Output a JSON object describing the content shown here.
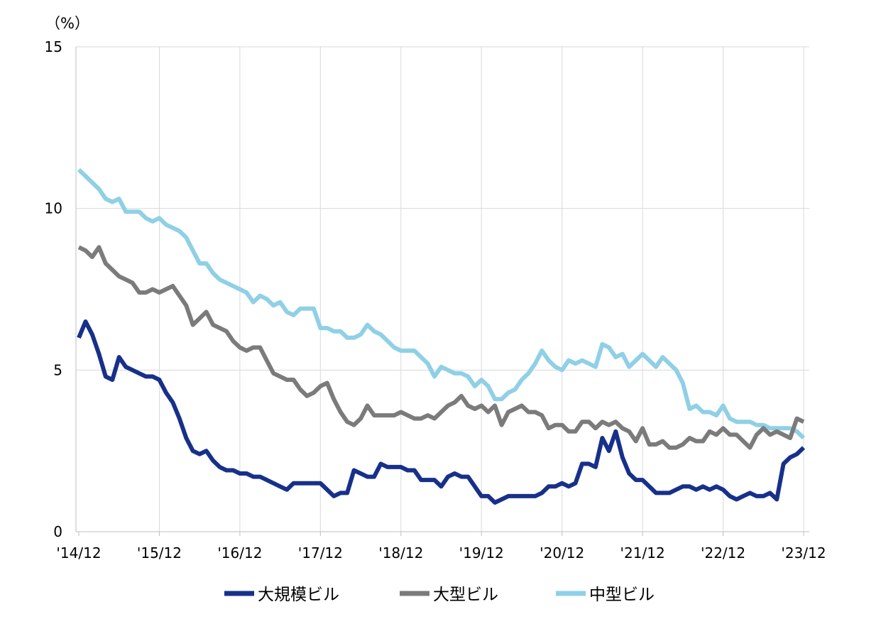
{
  "chart_data": {
    "type": "line",
    "unit_label": "（%）",
    "ylim": [
      0,
      15
    ],
    "y_ticks": [
      "0",
      "5",
      "10",
      "15"
    ],
    "x_ticks": [
      "'14/12",
      "'15/12",
      "'16/12",
      "'17/12",
      "'18/12",
      "'19/12",
      "'20/12",
      "'21/12",
      "'22/12",
      "'23/12"
    ],
    "x_range_months": [
      "2014-12",
      "2023-12"
    ],
    "grid": true,
    "legend_position": "bottom",
    "series": [
      {
        "name": "大規模ビル",
        "color": "#17308a",
        "values": [
          6.0,
          6.5,
          6.1,
          5.5,
          4.8,
          4.7,
          5.4,
          5.1,
          5.0,
          4.9,
          4.8,
          4.8,
          4.7,
          4.3,
          4.0,
          3.5,
          2.9,
          2.5,
          2.4,
          2.5,
          2.2,
          2.0,
          1.9,
          1.9,
          1.8,
          1.8,
          1.7,
          1.7,
          1.6,
          1.5,
          1.4,
          1.3,
          1.5,
          1.5,
          1.5,
          1.5,
          1.5,
          1.3,
          1.1,
          1.2,
          1.2,
          1.9,
          1.8,
          1.7,
          1.7,
          2.1,
          2.0,
          2.0,
          2.0,
          1.9,
          1.9,
          1.6,
          1.6,
          1.6,
          1.4,
          1.7,
          1.8,
          1.7,
          1.7,
          1.4,
          1.1,
          1.1,
          0.9,
          1.0,
          1.1,
          1.1,
          1.1,
          1.1,
          1.1,
          1.2,
          1.4,
          1.4,
          1.5,
          1.4,
          1.5,
          2.1,
          2.1,
          2.0,
          2.9,
          2.5,
          3.1,
          2.3,
          1.8,
          1.6,
          1.6,
          1.4,
          1.2,
          1.2,
          1.2,
          1.3,
          1.4,
          1.4,
          1.3,
          1.4,
          1.3,
          1.4,
          1.3,
          1.1,
          1.0,
          1.1,
          1.2,
          1.1,
          1.1,
          1.2,
          1.0,
          2.1,
          2.3,
          2.4,
          2.6
        ]
      },
      {
        "name": "大型ビル",
        "color": "#7b7b7b",
        "values": [
          8.8,
          8.7,
          8.5,
          8.8,
          8.3,
          8.1,
          7.9,
          7.8,
          7.7,
          7.4,
          7.4,
          7.5,
          7.4,
          7.5,
          7.6,
          7.3,
          7.0,
          6.4,
          6.6,
          6.8,
          6.4,
          6.3,
          6.2,
          5.9,
          5.7,
          5.6,
          5.7,
          5.7,
          5.3,
          4.9,
          4.8,
          4.7,
          4.7,
          4.4,
          4.2,
          4.3,
          4.5,
          4.6,
          4.1,
          3.7,
          3.4,
          3.3,
          3.5,
          3.9,
          3.6,
          3.6,
          3.6,
          3.6,
          3.7,
          3.6,
          3.5,
          3.5,
          3.6,
          3.5,
          3.7,
          3.9,
          4.0,
          4.2,
          3.9,
          3.8,
          3.9,
          3.7,
          3.9,
          3.3,
          3.7,
          3.8,
          3.9,
          3.7,
          3.7,
          3.6,
          3.2,
          3.3,
          3.3,
          3.1,
          3.1,
          3.4,
          3.4,
          3.2,
          3.4,
          3.3,
          3.4,
          3.2,
          3.1,
          2.8,
          3.2,
          2.7,
          2.7,
          2.8,
          2.6,
          2.6,
          2.7,
          2.9,
          2.8,
          2.8,
          3.1,
          3.0,
          3.2,
          3.0,
          3.0,
          2.8,
          2.6,
          3.0,
          3.2,
          3.0,
          3.1,
          3.0,
          2.9,
          3.5,
          3.4
        ]
      },
      {
        "name": "中型ビル",
        "color": "#8fd0e6",
        "values": [
          11.2,
          11.0,
          10.8,
          10.6,
          10.3,
          10.2,
          10.3,
          9.9,
          9.9,
          9.9,
          9.7,
          9.6,
          9.7,
          9.5,
          9.4,
          9.3,
          9.1,
          8.7,
          8.3,
          8.3,
          8.0,
          7.8,
          7.7,
          7.6,
          7.5,
          7.4,
          7.1,
          7.3,
          7.2,
          7.0,
          7.1,
          6.8,
          6.7,
          6.9,
          6.9,
          6.9,
          6.3,
          6.3,
          6.2,
          6.2,
          6.0,
          6.0,
          6.1,
          6.4,
          6.2,
          6.1,
          5.9,
          5.7,
          5.6,
          5.6,
          5.6,
          5.4,
          5.2,
          4.8,
          5.1,
          5.0,
          4.9,
          4.9,
          4.8,
          4.5,
          4.7,
          4.5,
          4.1,
          4.1,
          4.3,
          4.4,
          4.7,
          4.9,
          5.2,
          5.6,
          5.3,
          5.1,
          5.0,
          5.3,
          5.2,
          5.3,
          5.2,
          5.1,
          5.8,
          5.7,
          5.4,
          5.5,
          5.1,
          5.3,
          5.5,
          5.3,
          5.1,
          5.4,
          5.2,
          5.0,
          4.6,
          3.8,
          3.9,
          3.7,
          3.7,
          3.6,
          3.9,
          3.5,
          3.4,
          3.4,
          3.4,
          3.3,
          3.3,
          3.2,
          3.2,
          3.2,
          3.2,
          3.1,
          2.9
        ]
      }
    ]
  }
}
